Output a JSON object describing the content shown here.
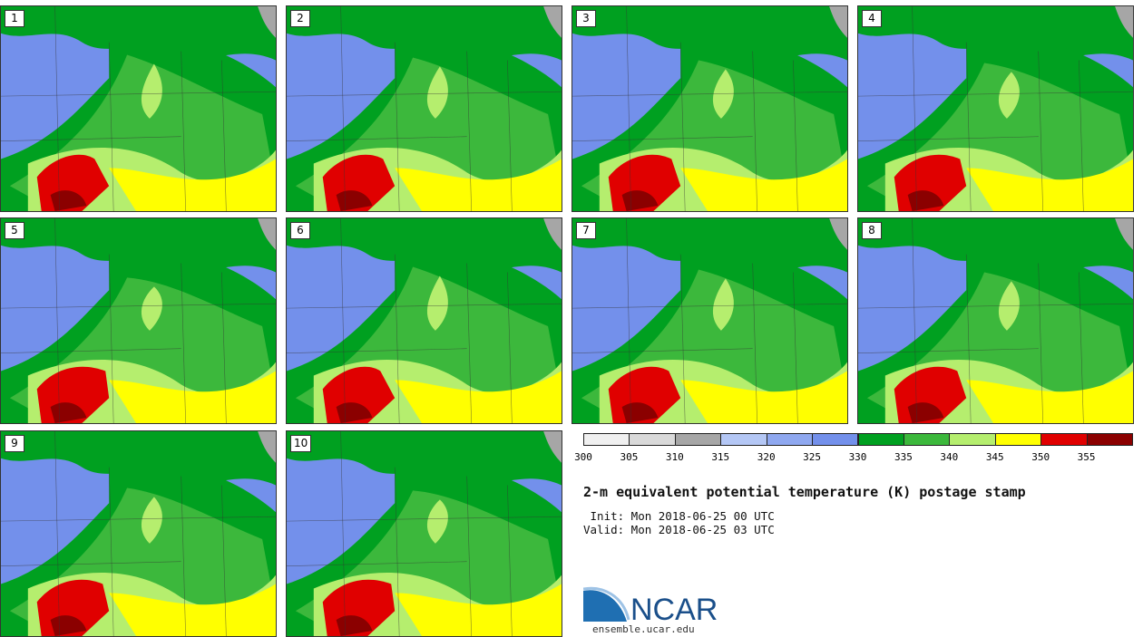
{
  "panels": [
    {
      "label": "1"
    },
    {
      "label": "2"
    },
    {
      "label": "3"
    },
    {
      "label": "4"
    },
    {
      "label": "5"
    },
    {
      "label": "6"
    },
    {
      "label": "7"
    },
    {
      "label": "8"
    },
    {
      "label": "9"
    },
    {
      "label": "10"
    }
  ],
  "colorbar": {
    "ticks": [
      "300",
      "305",
      "310",
      "315",
      "320",
      "325",
      "330",
      "335",
      "340",
      "345",
      "350",
      "355"
    ],
    "colors": [
      "#f0f0f0",
      "#d9d9d9",
      "#a6a6a6",
      "#b4c7f5",
      "#8fa8f0",
      "#7390eb",
      "#00a020",
      "#3cb83c",
      "#b5ee6e",
      "#ffff00",
      "#e00000",
      "#8b0000"
    ]
  },
  "title": "2-m equivalent potential temperature (K) postage stamp",
  "init": " Init: Mon 2018-06-25 00 UTC",
  "valid": "Valid: Mon 2018-06-25 03 UTC",
  "logo": {
    "text": "NCAR",
    "url": "ensemble.ucar.edu"
  },
  "map_colors": {
    "blue": "#7390eb",
    "light_blue": "#8fa8f0",
    "dark_green": "#00a020",
    "green": "#3cb83c",
    "light_green": "#b5ee6e",
    "yellow": "#ffff00",
    "red": "#e00000",
    "dark_red": "#8b0000",
    "gray": "#a6a6a6"
  }
}
